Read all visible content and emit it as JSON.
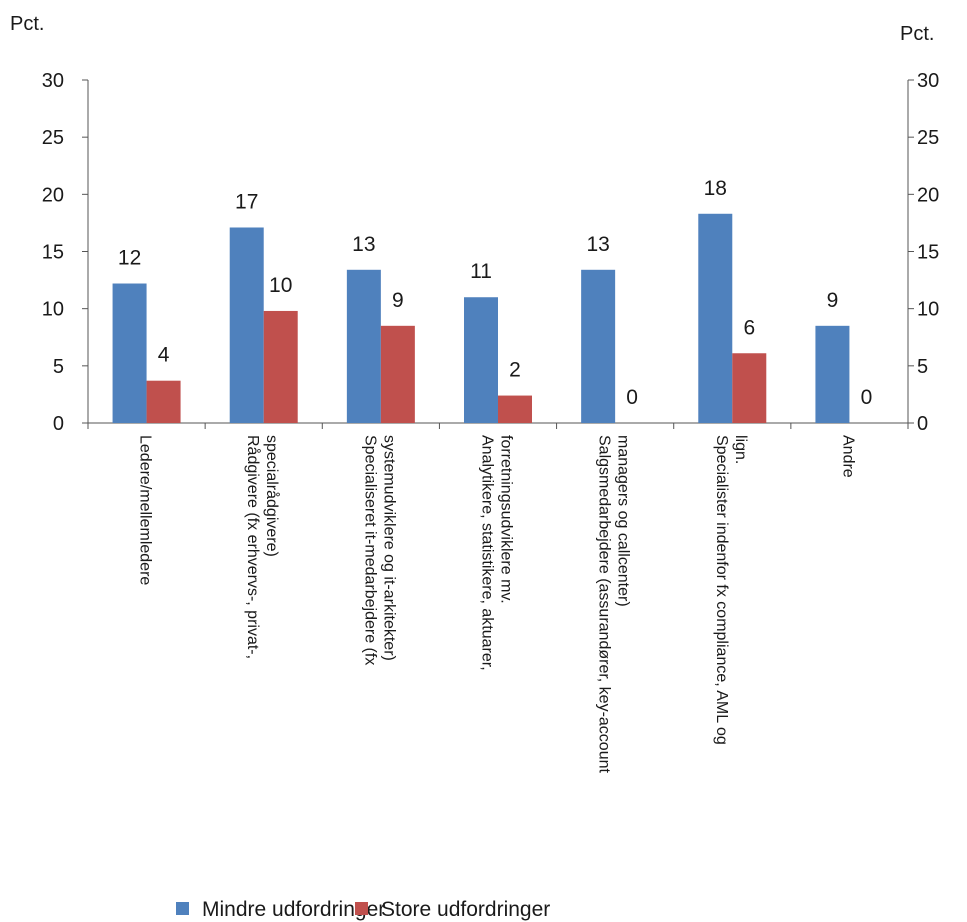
{
  "chart_data": {
    "type": "bar",
    "left_unit": "Pct.",
    "right_unit": "Pct.",
    "ylim": [
      0,
      30
    ],
    "yticks": [
      0,
      5,
      10,
      15,
      20,
      25,
      30
    ],
    "grid": false,
    "legend_position": "bottom",
    "categories": [
      [
        "Ledere/mellemledere"
      ],
      [
        "Rådgivere (fx erhvervs-, privat-,",
        "specialrådgivere)"
      ],
      [
        "Specialiseret it-medarbejdere (fx",
        "systemudviklere og it-arkitekter)"
      ],
      [
        "Analytikere, statistikere, aktuarer,",
        "forretningsudviklere mv."
      ],
      [
        "Salgsmedarbejdere (assurandører, key-account",
        "managers og callcenter)"
      ],
      [
        "Specialister indenfor fx compliance, AML og",
        "lign."
      ],
      [
        "Andre"
      ]
    ],
    "series": [
      {
        "name": "Mindre udfordringer",
        "color": "#4f81bd",
        "values": [
          12.2,
          17.1,
          13.4,
          11.0,
          13.4,
          18.3,
          8.5
        ],
        "labels": [
          "12",
          "17",
          "13",
          "11",
          "13",
          "18",
          "9"
        ]
      },
      {
        "name": "Store udfordringer",
        "color": "#c0504d",
        "values": [
          3.7,
          9.8,
          8.5,
          2.4,
          0,
          6.1,
          0
        ],
        "labels": [
          "4",
          "10",
          "9",
          "2",
          "0",
          "6",
          "0"
        ]
      }
    ]
  }
}
